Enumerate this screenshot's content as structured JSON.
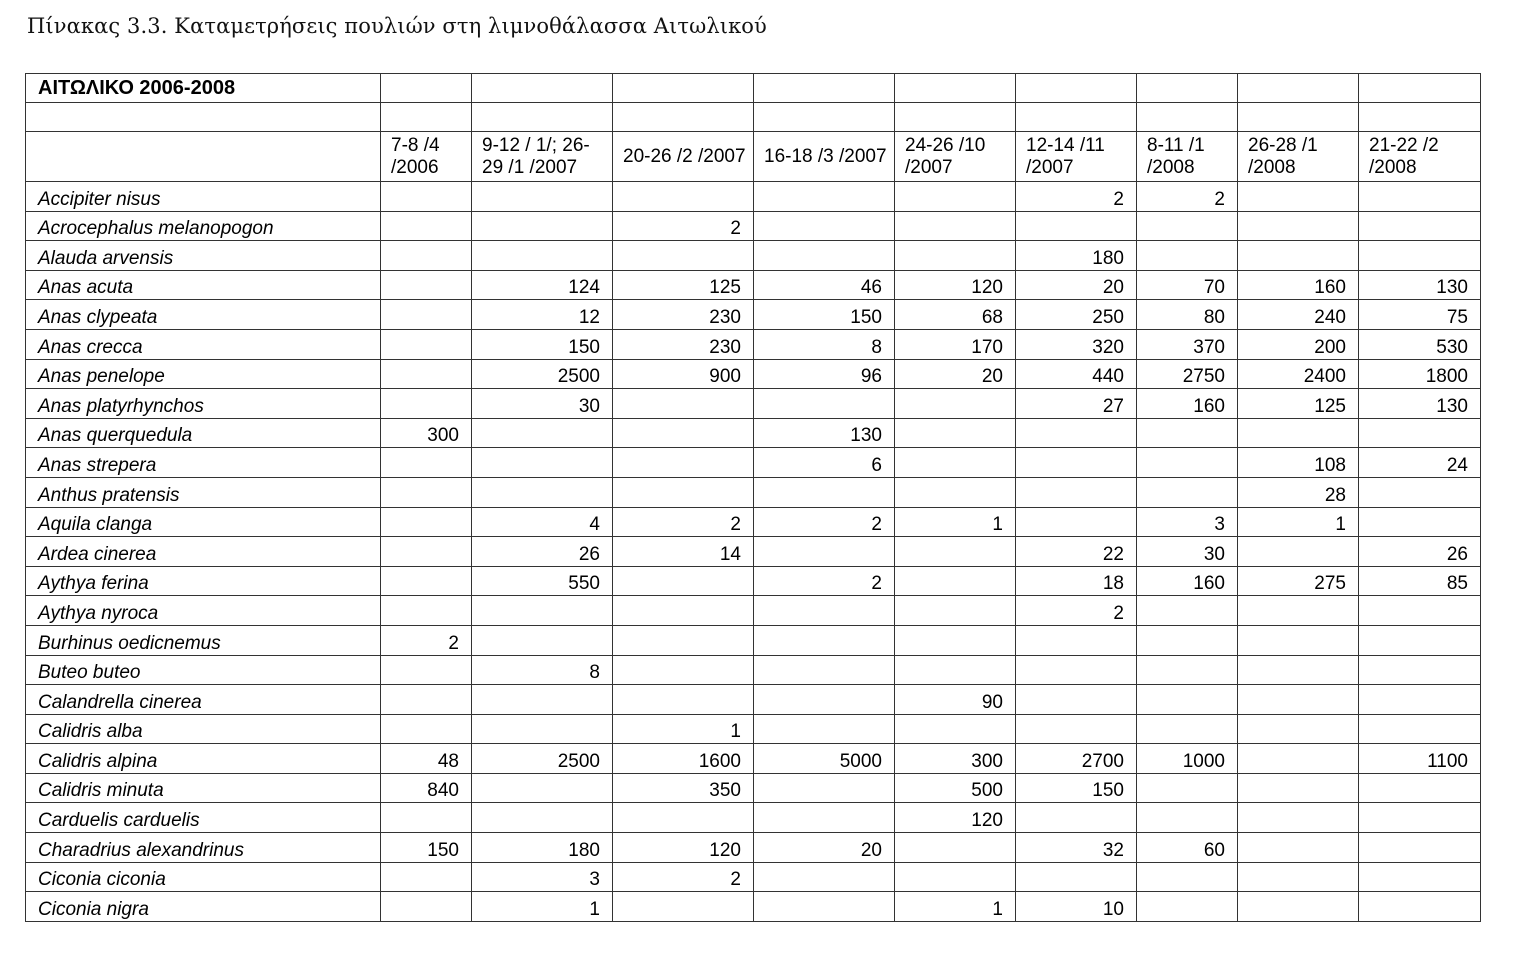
{
  "caption": "Πίνακας 3.3. Καταμετρήσεις πουλιών στη λιμνοθάλασσα Αιτωλικού",
  "table": {
    "title": "ΑΙΤΩΛΙΚΟ 2006-2008",
    "columns": [
      "7-8 /4 /2006",
      "9-12 / 1/; 26-29 /1 /2007",
      "20-26 /2 /2007",
      "16-18 /3 /2007",
      "24-26 /10 /2007",
      "12-14 /11 /2007",
      "8-11 /1 /2008",
      "26-28 /1 /2008",
      "21-22 /2 /2008"
    ],
    "rows": [
      {
        "species": "Accipiter nisus",
        "values": [
          "",
          "",
          "",
          "",
          "",
          "2",
          "2",
          "",
          ""
        ]
      },
      {
        "species": "Acrocephalus melanopogon",
        "values": [
          "",
          "",
          "2",
          "",
          "",
          "",
          "",
          "",
          ""
        ]
      },
      {
        "species": "Alauda arvensis",
        "values": [
          "",
          "",
          "",
          "",
          "",
          "180",
          "",
          "",
          ""
        ]
      },
      {
        "species": "Anas acuta",
        "values": [
          "",
          "124",
          "125",
          "46",
          "120",
          "20",
          "70",
          "160",
          "130"
        ]
      },
      {
        "species": "Anas clypeata",
        "values": [
          "",
          "12",
          "230",
          "150",
          "68",
          "250",
          "80",
          "240",
          "75"
        ]
      },
      {
        "species": "Anas crecca",
        "values": [
          "",
          "150",
          "230",
          "8",
          "170",
          "320",
          "370",
          "200",
          "530"
        ]
      },
      {
        "species": "Anas penelope",
        "values": [
          "",
          "2500",
          "900",
          "96",
          "20",
          "440",
          "2750",
          "2400",
          "1800"
        ]
      },
      {
        "species": "Anas platyrhynchos",
        "values": [
          "",
          "30",
          "",
          "",
          "",
          "27",
          "160",
          "125",
          "130"
        ]
      },
      {
        "species": "Anas querquedula",
        "values": [
          "300",
          "",
          "",
          "130",
          "",
          "",
          "",
          "",
          ""
        ]
      },
      {
        "species": "Anas strepera",
        "values": [
          "",
          "",
          "",
          "6",
          "",
          "",
          "",
          "108",
          "24"
        ]
      },
      {
        "species": "Anthus pratensis",
        "values": [
          "",
          "",
          "",
          "",
          "",
          "",
          "",
          "28",
          ""
        ]
      },
      {
        "species": "Aquila clanga",
        "values": [
          "",
          "4",
          "2",
          "2",
          "1",
          "",
          "3",
          "1",
          ""
        ]
      },
      {
        "species": "Ardea cinerea",
        "values": [
          "",
          "26",
          "14",
          "",
          "",
          "22",
          "30",
          "",
          "26"
        ]
      },
      {
        "species": "Aythya ferina",
        "values": [
          "",
          "550",
          "",
          "2",
          "",
          "18",
          "160",
          "275",
          "85"
        ]
      },
      {
        "species": "Aythya nyroca",
        "values": [
          "",
          "",
          "",
          "",
          "",
          "2",
          "",
          "",
          ""
        ]
      },
      {
        "species": "Burhinus oedicnemus",
        "values": [
          "2",
          "",
          "",
          "",
          "",
          "",
          "",
          "",
          ""
        ]
      },
      {
        "species": "Buteo buteo",
        "values": [
          "",
          "8",
          "",
          "",
          "",
          "",
          "",
          "",
          ""
        ]
      },
      {
        "species": "Calandrella cinerea",
        "values": [
          "",
          "",
          "",
          "",
          "90",
          "",
          "",
          "",
          ""
        ]
      },
      {
        "species": "Calidris alba",
        "values": [
          "",
          "",
          "1",
          "",
          "",
          "",
          "",
          "",
          ""
        ]
      },
      {
        "species": "Calidris alpina",
        "values": [
          "48",
          "2500",
          "1600",
          "5000",
          "300",
          "2700",
          "1000",
          "",
          "1100"
        ]
      },
      {
        "species": "Calidris minuta",
        "values": [
          "840",
          "",
          "350",
          "",
          "500",
          "150",
          "",
          "",
          ""
        ]
      },
      {
        "species": "Carduelis carduelis",
        "values": [
          "",
          "",
          "",
          "",
          "120",
          "",
          "",
          "",
          ""
        ]
      },
      {
        "species": "Charadrius alexandrinus",
        "values": [
          "150",
          "180",
          "120",
          "20",
          "",
          "32",
          "60",
          "",
          ""
        ]
      },
      {
        "species": "Ciconia ciconia",
        "values": [
          "",
          "3",
          "2",
          "",
          "",
          "",
          "",
          "",
          ""
        ]
      },
      {
        "species": "Ciconia nigra",
        "values": [
          "",
          "1",
          "",
          "",
          "1",
          "10",
          "",
          "",
          ""
        ]
      }
    ]
  }
}
